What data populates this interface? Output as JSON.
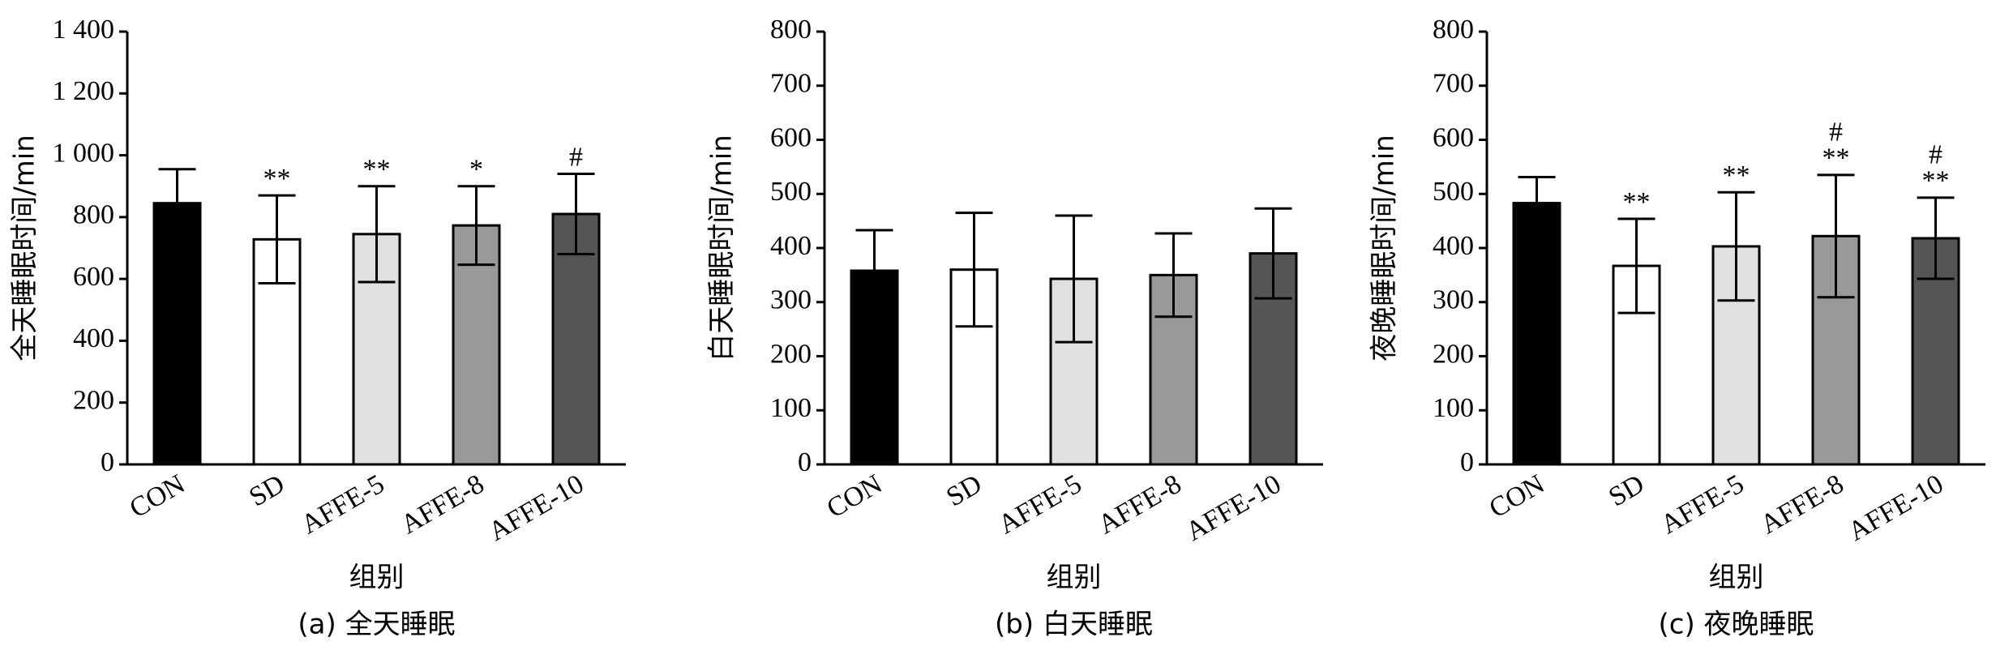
{
  "chart_data": [
    {
      "type": "bar",
      "title": "(a) 全天睡眠",
      "xlabel": "组别",
      "ylabel": "全天睡眠时间/min",
      "categories": [
        "CON",
        "SD",
        "AFFE-5",
        "AFFE-8",
        "AFFE-10"
      ],
      "values": [
        845,
        728,
        745,
        773,
        810
      ],
      "errors": [
        110,
        142,
        155,
        127,
        130
      ],
      "colors": [
        "#000000",
        "#ffffff",
        "#e0e0e0",
        "#999999",
        "#555555"
      ],
      "annotations": [
        null,
        [
          "**"
        ],
        [
          "**"
        ],
        [
          "*"
        ],
        [
          "#"
        ]
      ],
      "ylim": [
        0,
        1400
      ],
      "yticks": [
        0,
        200,
        400,
        600,
        800,
        {
          "value": 1000,
          "label": "1 000"
        },
        {
          "value": 1200,
          "label": "1 200"
        },
        {
          "value": 1400,
          "label": "1 400"
        }
      ]
    },
    {
      "type": "bar",
      "title": "(b) 白天睡眠",
      "xlabel": "组别",
      "ylabel": "白天睡眠时间/min",
      "categories": [
        "CON",
        "SD",
        "AFFE-5",
        "AFFE-8",
        "AFFE-10"
      ],
      "values": [
        358,
        360,
        343,
        350,
        390
      ],
      "errors": [
        75,
        105,
        117,
        77,
        83
      ],
      "colors": [
        "#000000",
        "#ffffff",
        "#e0e0e0",
        "#999999",
        "#555555"
      ],
      "annotations": [
        null,
        null,
        null,
        null,
        null
      ],
      "ylim": [
        0,
        800
      ],
      "yticks": [
        0,
        100,
        200,
        300,
        400,
        500,
        600,
        700,
        800
      ]
    },
    {
      "type": "bar",
      "title": "(c) 夜晚睡眠",
      "xlabel": "组别",
      "ylabel": "夜晚睡眠时间/min",
      "categories": [
        "CON",
        "SD",
        "AFFE-5",
        "AFFE-8",
        "AFFE-10"
      ],
      "values": [
        483,
        367,
        403,
        422,
        418
      ],
      "errors": [
        48,
        87,
        100,
        113,
        75
      ],
      "colors": [
        "#000000",
        "#ffffff",
        "#e0e0e0",
        "#999999",
        "#555555"
      ],
      "annotations": [
        null,
        [
          "**"
        ],
        [
          "**"
        ],
        [
          "#",
          "**"
        ],
        [
          "#",
          "**"
        ]
      ],
      "ylim": [
        0,
        800
      ],
      "yticks": [
        0,
        100,
        200,
        300,
        400,
        500,
        600,
        700,
        800
      ]
    }
  ]
}
